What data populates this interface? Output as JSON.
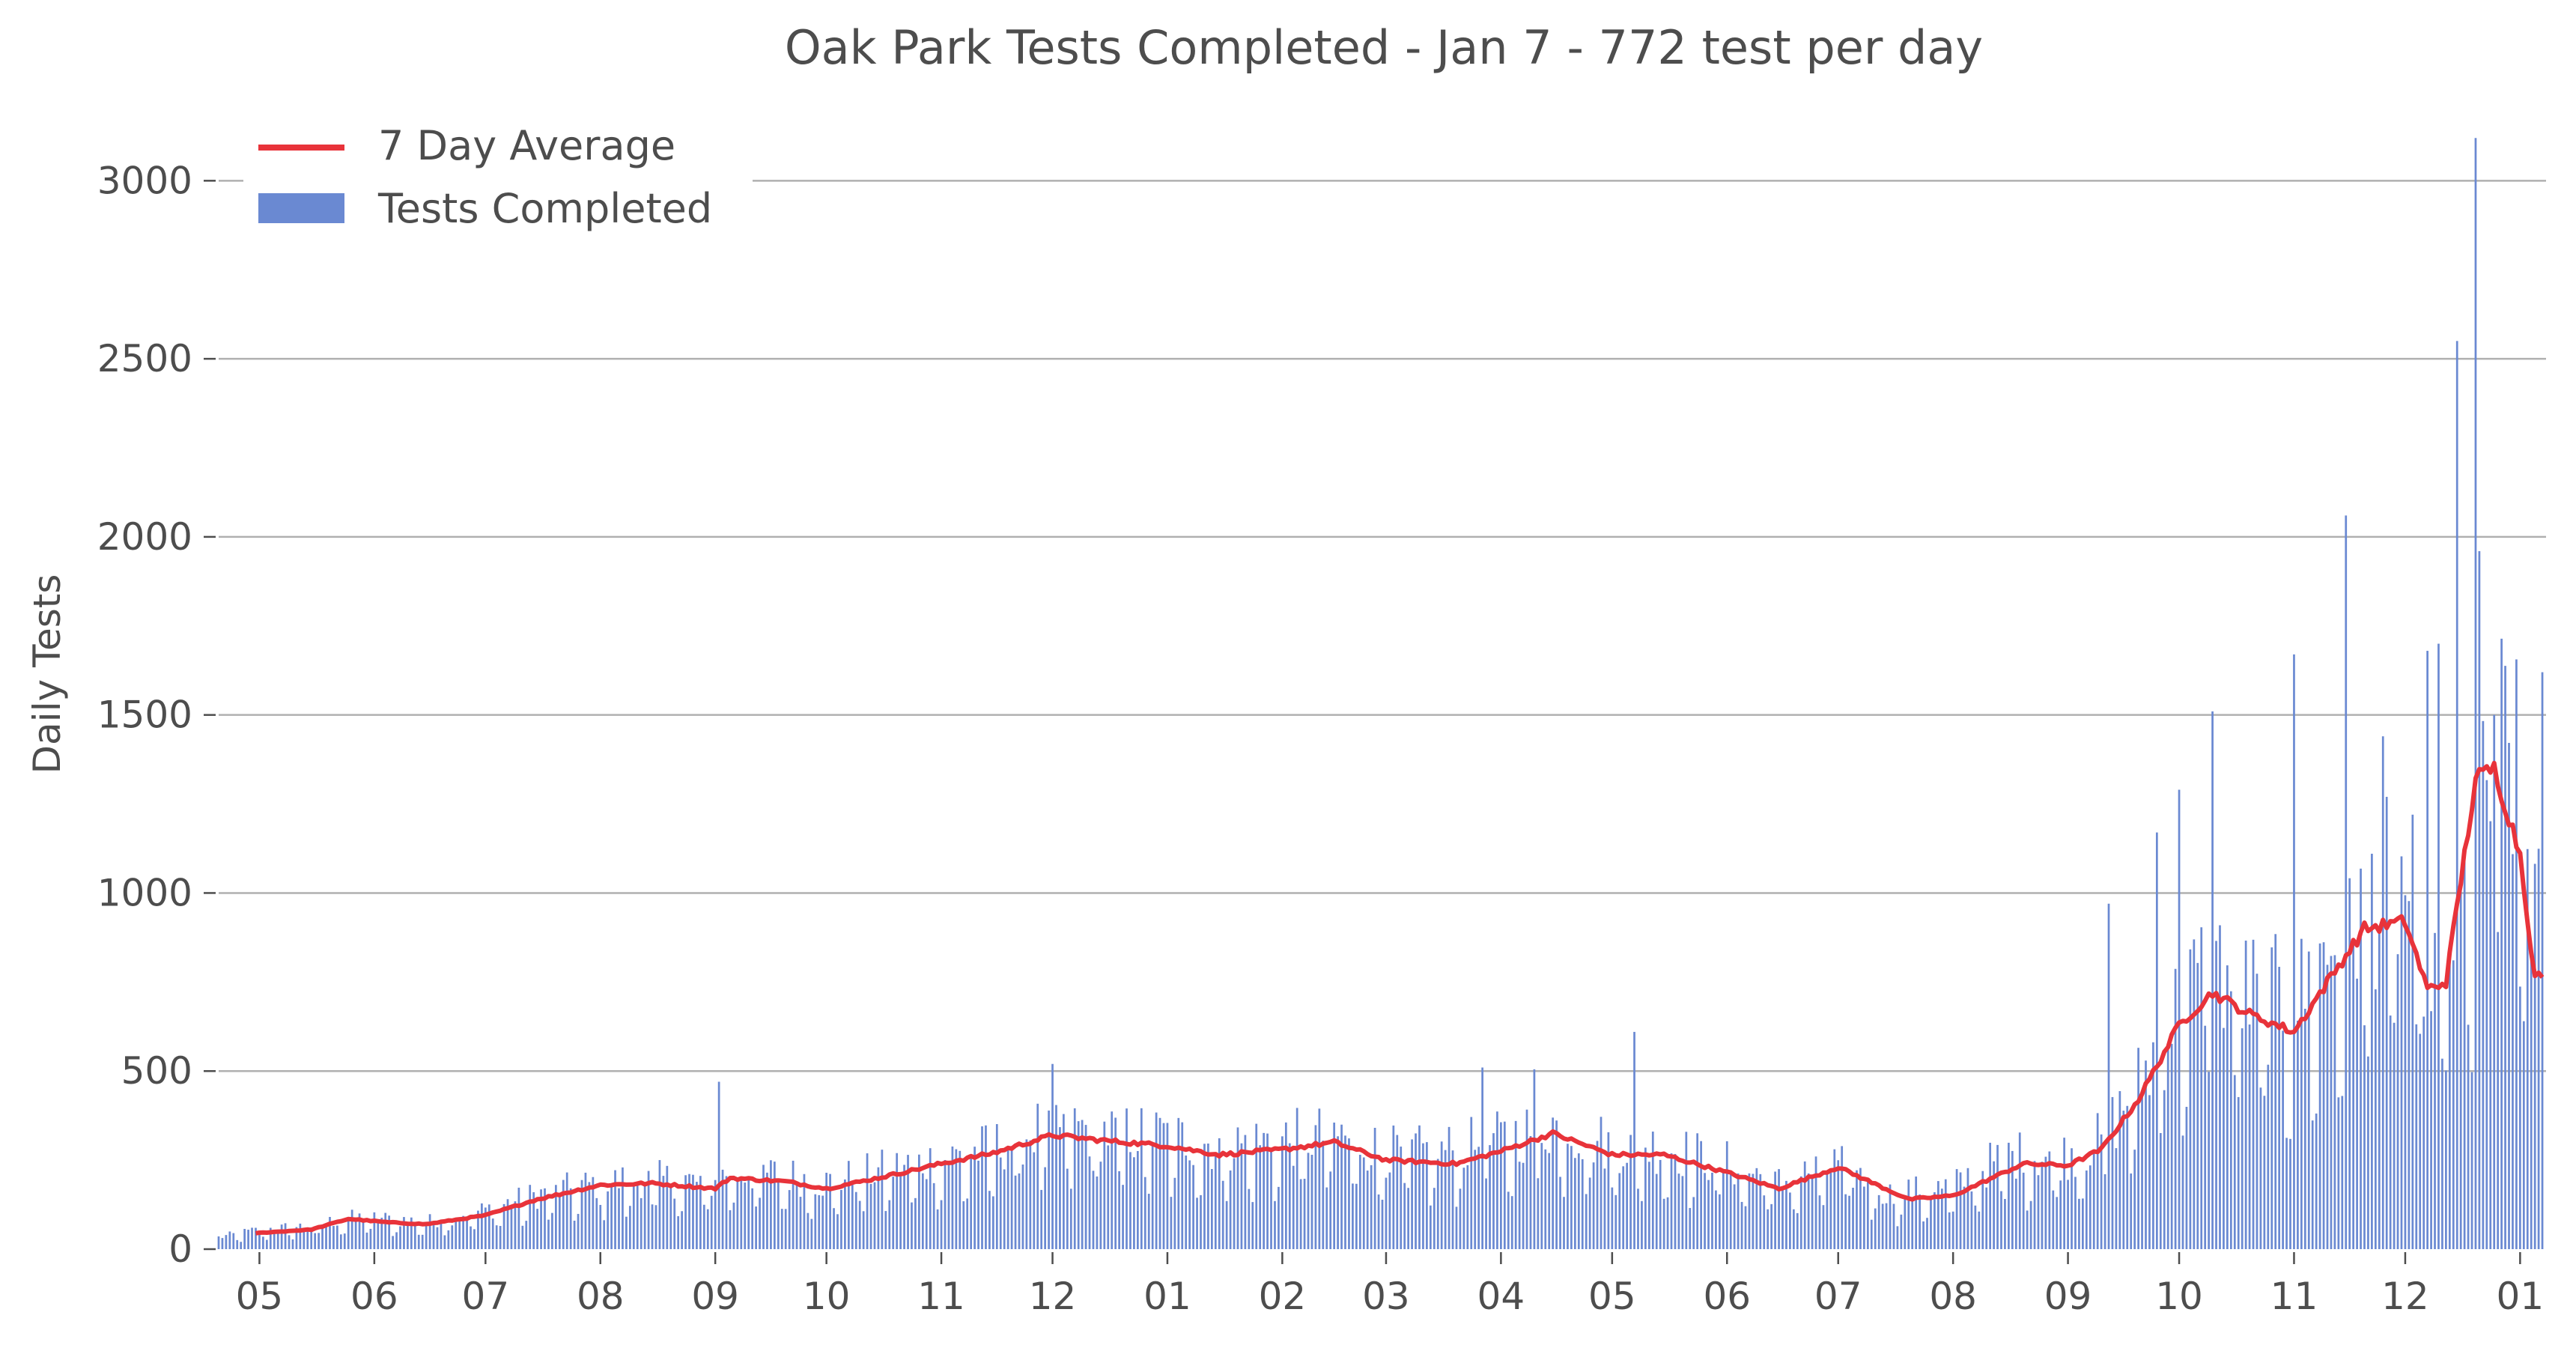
{
  "chart_data": {
    "type": "bar",
    "title": "Oak Park Tests Completed - Jan 7 - 772 test per day",
    "ylabel": "Daily Tests",
    "xlabel": "",
    "x_tick_labels": [
      "05",
      "06",
      "07",
      "08",
      "09",
      "10",
      "11",
      "12",
      "01",
      "02",
      "03",
      "04",
      "05",
      "06",
      "07",
      "08",
      "09",
      "10",
      "11",
      "12",
      "01"
    ],
    "y_ticks": [
      0,
      500,
      1000,
      1500,
      2000,
      2500,
      3000
    ],
    "ylim": [
      0,
      3150
    ],
    "grid": "horizontal",
    "legend_position": "top-left",
    "start_date": "2020-04-20",
    "series": [
      {
        "name": "7 Day Average",
        "kind": "line",
        "color": "#e8333a"
      },
      {
        "name": "Tests Completed",
        "kind": "bar",
        "color": "#6a89d2"
      }
    ],
    "daily_tests_anchors": [
      [
        "2020-04-20",
        30
      ],
      [
        "2020-05-01",
        50
      ],
      [
        "2020-05-15",
        60
      ],
      [
        "2020-05-25",
        80
      ],
      [
        "2020-06-01",
        80
      ],
      [
        "2020-06-15",
        70
      ],
      [
        "2020-07-01",
        100
      ],
      [
        "2020-07-15",
        140
      ],
      [
        "2020-08-01",
        170
      ],
      [
        "2020-08-15",
        180
      ],
      [
        "2020-09-01",
        170
      ],
      [
        "2020-09-05",
        200
      ],
      [
        "2020-09-20",
        190
      ],
      [
        "2020-10-01",
        170
      ],
      [
        "2020-10-15",
        200
      ],
      [
        "2020-11-01",
        230
      ],
      [
        "2020-11-15",
        260
      ],
      [
        "2020-12-01",
        320
      ],
      [
        "2020-12-15",
        300
      ],
      [
        "2021-01-01",
        290
      ],
      [
        "2021-01-15",
        265
      ],
      [
        "2021-02-01",
        280
      ],
      [
        "2021-02-15",
        295
      ],
      [
        "2021-03-01",
        250
      ],
      [
        "2021-03-15",
        250
      ],
      [
        "2021-04-01",
        280
      ],
      [
        "2021-04-15",
        320
      ],
      [
        "2021-05-01",
        265
      ],
      [
        "2021-05-15",
        260
      ],
      [
        "2021-06-01",
        220
      ],
      [
        "2021-06-15",
        170
      ],
      [
        "2021-07-01",
        220
      ],
      [
        "2021-07-15",
        140
      ],
      [
        "2021-08-01",
        160
      ],
      [
        "2021-08-15",
        240
      ],
      [
        "2021-09-01",
        240
      ],
      [
        "2021-09-10",
        280
      ],
      [
        "2021-09-20",
        420
      ],
      [
        "2021-10-01",
        620
      ],
      [
        "2021-10-10",
        730
      ],
      [
        "2021-10-20",
        650
      ],
      [
        "2021-11-01",
        620
      ],
      [
        "2021-11-10",
        760
      ],
      [
        "2021-11-20",
        900
      ],
      [
        "2021-12-01",
        920
      ],
      [
        "2021-12-10",
        720
      ],
      [
        "2021-12-20",
        1000
      ],
      [
        "2021-12-28",
        1320
      ],
      [
        "2022-01-01",
        1150
      ],
      [
        "2022-01-07",
        772
      ]
    ],
    "daily_tests_spikes": [
      [
        "2020-09-02",
        470
      ],
      [
        "2020-12-01",
        520
      ],
      [
        "2021-03-27",
        510
      ],
      [
        "2021-04-10",
        505
      ],
      [
        "2021-05-07",
        610
      ],
      [
        "2021-09-12",
        970
      ],
      [
        "2021-09-25",
        1170
      ],
      [
        "2021-10-10",
        1510
      ],
      [
        "2021-10-01",
        1290
      ],
      [
        "2021-11-01",
        1670
      ],
      [
        "2021-11-15",
        2060
      ],
      [
        "2021-11-25",
        1440
      ],
      [
        "2021-12-07",
        1680
      ],
      [
        "2021-12-10",
        1700
      ],
      [
        "2021-12-15",
        2550
      ],
      [
        "2021-12-20",
        3120
      ],
      [
        "2021-12-21",
        1960
      ],
      [
        "2021-12-25",
        1500
      ],
      [
        "2022-01-07",
        1620
      ]
    ],
    "seven_day_average_anchors": [
      [
        "2020-04-30",
        45
      ],
      [
        "2020-05-15",
        55
      ],
      [
        "2020-05-25",
        85
      ],
      [
        "2020-06-05",
        75
      ],
      [
        "2020-06-15",
        70
      ],
      [
        "2020-07-01",
        95
      ],
      [
        "2020-07-15",
        140
      ],
      [
        "2020-08-01",
        180
      ],
      [
        "2020-08-15",
        185
      ],
      [
        "2020-09-01",
        170
      ],
      [
        "2020-09-05",
        200
      ],
      [
        "2020-09-20",
        190
      ],
      [
        "2020-10-01",
        170
      ],
      [
        "2020-10-15",
        200
      ],
      [
        "2020-11-01",
        240
      ],
      [
        "2020-11-15",
        270
      ],
      [
        "2020-12-01",
        320
      ],
      [
        "2020-12-15",
        305
      ],
      [
        "2021-01-01",
        290
      ],
      [
        "2021-01-15",
        265
      ],
      [
        "2021-02-01",
        280
      ],
      [
        "2021-02-15",
        300
      ],
      [
        "2021-03-01",
        250
      ],
      [
        "2021-03-20",
        240
      ],
      [
        "2021-04-01",
        275
      ],
      [
        "2021-04-15",
        325
      ],
      [
        "2021-05-01",
        265
      ],
      [
        "2021-05-15",
        265
      ],
      [
        "2021-06-01",
        215
      ],
      [
        "2021-06-15",
        170
      ],
      [
        "2021-07-01",
        230
      ],
      [
        "2021-07-20",
        140
      ],
      [
        "2021-08-01",
        150
      ],
      [
        "2021-08-20",
        240
      ],
      [
        "2021-09-01",
        235
      ],
      [
        "2021-09-10",
        280
      ],
      [
        "2021-09-20",
        420
      ],
      [
        "2021-10-01",
        630
      ],
      [
        "2021-10-10",
        720
      ],
      [
        "2021-10-20",
        660
      ],
      [
        "2021-11-01",
        610
      ],
      [
        "2021-11-10",
        750
      ],
      [
        "2021-11-20",
        900
      ],
      [
        "2021-12-01",
        920
      ],
      [
        "2021-12-07",
        730
      ],
      [
        "2021-12-12",
        750
      ],
      [
        "2021-12-20",
        1320
      ],
      [
        "2021-12-25",
        1350
      ],
      [
        "2022-01-01",
        1110
      ],
      [
        "2022-01-05",
        760
      ],
      [
        "2022-01-07",
        772
      ]
    ]
  }
}
